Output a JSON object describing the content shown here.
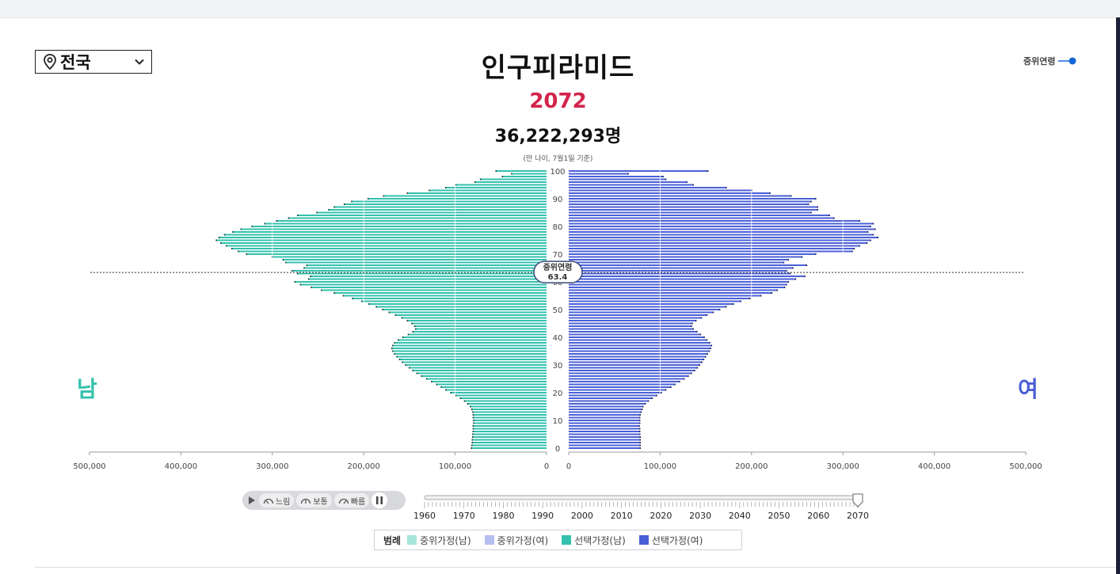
{
  "region": {
    "label": "전국",
    "icon": "location-pin-icon"
  },
  "header": {
    "title": "인구피라미드",
    "year": "2072",
    "total": "36,222,293명",
    "note": "(만 나이, 7월1일 기준)"
  },
  "median_toggle": {
    "label": "중위연령",
    "on": true
  },
  "sex_labels": {
    "male": "남",
    "female": "여"
  },
  "median": {
    "label": "중위연령",
    "value": "63.4"
  },
  "controls": {
    "speeds": [
      "느림",
      "보통",
      "빠름"
    ],
    "timeline_ticks": [
      "1960",
      "1970",
      "1980",
      "1990",
      "2000",
      "2010",
      "2020",
      "2030",
      "2040",
      "2050",
      "2060",
      "2070"
    ],
    "timeline_value": 2072
  },
  "legend": {
    "title": "범례",
    "items": [
      {
        "label": "중위가정(남)",
        "color": "#a7e6dc"
      },
      {
        "label": "중위가정(여)",
        "color": "#b7bff0"
      },
      {
        "label": "선택가정(남)",
        "color": "#33c1ad"
      },
      {
        "label": "선택가정(여)",
        "color": "#4a5fd6"
      }
    ]
  },
  "colors": {
    "male": "#33c1ad",
    "female": "#4a5fd6",
    "accent": "#d2254c",
    "toggle": "#1466d8"
  },
  "chart_data": {
    "type": "bar",
    "orientation": "horizontal-pyramid",
    "age_min": 0,
    "age_max": 100,
    "x_ticks_male": [
      "500,000",
      "400,000",
      "300,000",
      "200,000",
      "100,000",
      "0"
    ],
    "x_ticks_female": [
      "0",
      "100,000",
      "200,000",
      "300,000",
      "400,000",
      "500,000"
    ],
    "y_ticks": [
      "0",
      "10",
      "20",
      "30",
      "40",
      "50",
      "60",
      "70",
      "80",
      "90",
      "100"
    ],
    "xlim": [
      0,
      500000
    ],
    "median_age": 63.4,
    "series": [
      {
        "name": "선택가정(남)",
        "values": [
          82000,
          81500,
          81000,
          81000,
          80500,
          80500,
          80000,
          80000,
          80000,
          79500,
          79500,
          80000,
          80000,
          80500,
          81500,
          83000,
          86000,
          89500,
          94000,
          99000,
          104500,
          110000,
          115000,
          120000,
          125500,
          131000,
          136500,
          141500,
          146000,
          150000,
          154000,
          157500,
          160500,
          163500,
          166000,
          168000,
          169000,
          168000,
          166000,
          162000,
          157000,
          151000,
          146000,
          143000,
          144000,
          147000,
          152000,
          158000,
          165000,
          172000,
          179000,
          186000,
          194000,
          202000,
          212000,
          222000,
          232000,
          246000,
          257000,
          269000,
          275000,
          260000,
          258000,
          272000,
          278000,
          265000,
          262000,
          285000,
          288000,
          300000,
          328000,
          337000,
          344000,
          350000,
          356000,
          361000,
          358000,
          352000,
          343000,
          334000,
          322000,
          308000,
          295000,
          282000,
          272000,
          251000,
          238000,
          232000,
          221000,
          213000,
          195000,
          178000,
          152000,
          128000,
          110000,
          99000,
          78000,
          72000,
          48000,
          38000,
          55000
        ]
      },
      {
        "name": "선택가정(여)",
        "values": [
          78000,
          78000,
          78000,
          78000,
          78000,
          77500,
          77500,
          77500,
          77000,
          77500,
          77500,
          77500,
          78000,
          79000,
          80000,
          81000,
          83500,
          87000,
          91000,
          96000,
          101000,
          106000,
          111500,
          116000,
          121000,
          126000,
          130500,
          134000,
          137500,
          140500,
          143000,
          145500,
          147500,
          149500,
          151500,
          153500,
          155000,
          156000,
          154000,
          151000,
          148000,
          144000,
          140000,
          136000,
          134000,
          135000,
          139000,
          145000,
          151000,
          158000,
          165000,
          172000,
          180000,
          188000,
          198000,
          210000,
          222000,
          228000,
          236000,
          238000,
          240000,
          248000,
          258000,
          242000,
          238000,
          245000,
          260000,
          235000,
          240000,
          255000,
          270000,
          310000,
          312000,
          318000,
          326000,
          330000,
          338000,
          333000,
          327000,
          335000,
          330000,
          333000,
          318000,
          290000,
          285000,
          265000,
          272000,
          272000,
          262000,
          265000,
          270000,
          243000,
          220000,
          200000,
          172000,
          136000,
          129000,
          106000,
          103000,
          65000,
          152000
        ]
      }
    ]
  }
}
